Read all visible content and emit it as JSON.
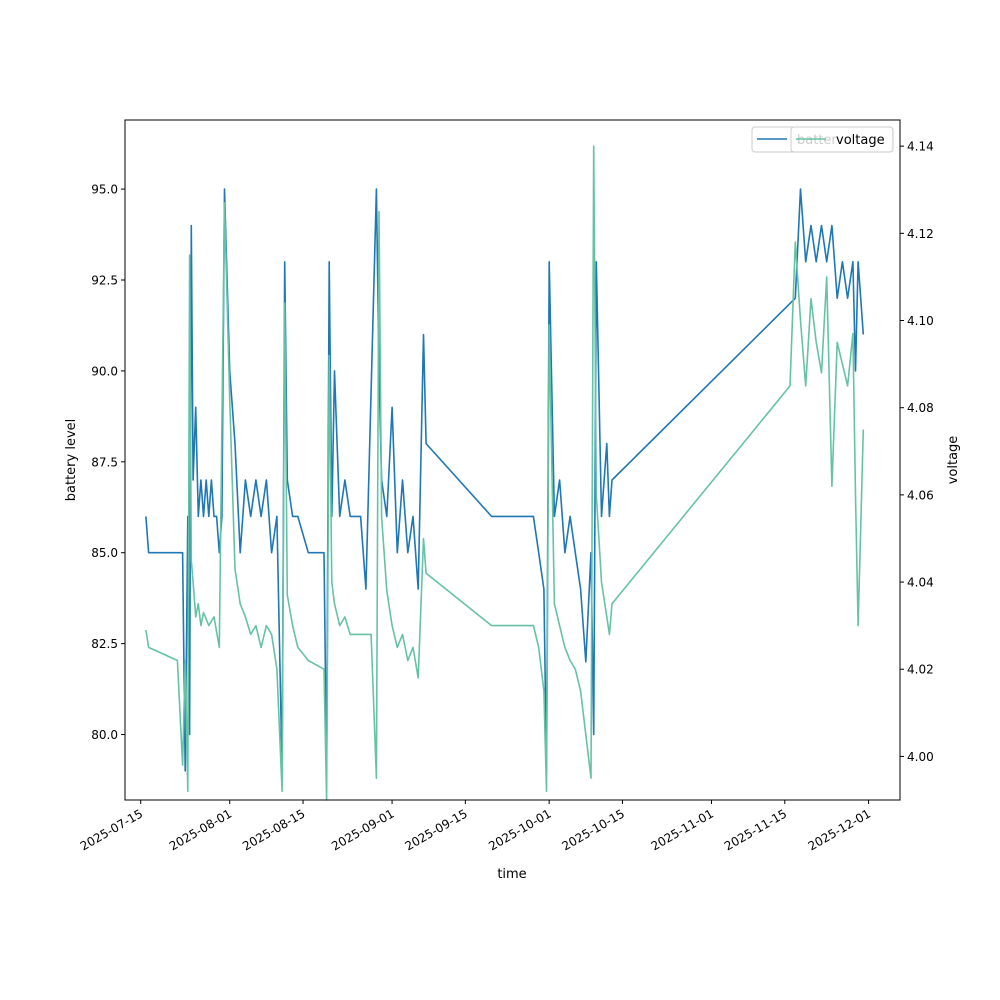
{
  "chart_data": {
    "type": "line",
    "title": "",
    "xlabel": "time",
    "ylabel_left": "battery level",
    "ylabel_right": "voltage",
    "xlim": [
      "2025-07-12",
      "2025-12-07"
    ],
    "ylim_left": [
      78.2,
      96.9
    ],
    "ylim_right": [
      3.99,
      4.146
    ],
    "x_ticks": [
      "2025-07-15",
      "2025-08-01",
      "2025-08-15",
      "2025-09-01",
      "2025-09-15",
      "2025-10-01",
      "2025-10-15",
      "2025-11-01",
      "2025-11-15",
      "2025-12-01"
    ],
    "y_ticks_left": [
      "80.0",
      "82.5",
      "85.0",
      "87.5",
      "90.0",
      "92.5",
      "95.0"
    ],
    "y_ticks_right": [
      "4.00",
      "4.02",
      "4.04",
      "4.06",
      "4.08",
      "4.10",
      "4.12",
      "4.14"
    ],
    "grid": false,
    "legends": [
      {
        "label": "battery level",
        "placement": "upper-right",
        "visible_text": "batter"
      },
      {
        "label": "voltage",
        "placement": "upper-right"
      }
    ],
    "series": [
      {
        "name": "battery level",
        "axis": "left",
        "color": "#1f77b4",
        "x": [
          "2025-07-16",
          "2025-07-16",
          "2025-07-17",
          "2025-07-22",
          "2025-07-23",
          "2025-07-23",
          "2025-07-24",
          "2025-07-24",
          "2025-07-24",
          "2025-07-25",
          "2025-07-25",
          "2025-07-26",
          "2025-07-26",
          "2025-07-27",
          "2025-07-27",
          "2025-07-28",
          "2025-07-28",
          "2025-07-29",
          "2025-07-29",
          "2025-07-30",
          "2025-07-30",
          "2025-07-31",
          "2025-08-01",
          "2025-08-02",
          "2025-08-03",
          "2025-08-04",
          "2025-08-05",
          "2025-08-06",
          "2025-08-07",
          "2025-08-08",
          "2025-08-09",
          "2025-08-10",
          "2025-08-11",
          "2025-08-11",
          "2025-08-12",
          "2025-08-13",
          "2025-08-14",
          "2025-08-16",
          "2025-08-19",
          "2025-08-19",
          "2025-08-20",
          "2025-08-20",
          "2025-08-21",
          "2025-08-22",
          "2025-08-23",
          "2025-08-24",
          "2025-08-25",
          "2025-08-26",
          "2025-08-27",
          "2025-08-29",
          "2025-08-29",
          "2025-08-30",
          "2025-08-31",
          "2025-09-01",
          "2025-09-02",
          "2025-09-03",
          "2025-09-04",
          "2025-09-05",
          "2025-09-06",
          "2025-09-07",
          "2025-09-07",
          "2025-09-20",
          "2025-09-28",
          "2025-09-29",
          "2025-09-30",
          "2025-09-30",
          "2025-10-01",
          "2025-10-02",
          "2025-10-03",
          "2025-10-04",
          "2025-10-05",
          "2025-10-06",
          "2025-10-07",
          "2025-10-08",
          "2025-10-09",
          "2025-10-09",
          "2025-10-10",
          "2025-10-11",
          "2025-10-12",
          "2025-10-12",
          "2025-10-13",
          "2025-11-17",
          "2025-11-18",
          "2025-11-19",
          "2025-11-20",
          "2025-11-21",
          "2025-11-22",
          "2025-11-23",
          "2025-11-24",
          "2025-11-25",
          "2025-11-26",
          "2025-11-27",
          "2025-11-28",
          "2025-11-28",
          "2025-11-29",
          "2025-11-30"
        ],
        "values": [
          86,
          85,
          85,
          85,
          85,
          79,
          86,
          80,
          94,
          87,
          89,
          86,
          87,
          86,
          87,
          86,
          87,
          86,
          86,
          85,
          86,
          95,
          90,
          88,
          85,
          87,
          86,
          87,
          86,
          87,
          85,
          86,
          79,
          93,
          87,
          86,
          86,
          85,
          85,
          79,
          93,
          86,
          90,
          86,
          87,
          86,
          86,
          86,
          84,
          95,
          90,
          87,
          86,
          89,
          85,
          87,
          85,
          86,
          84,
          91,
          88,
          86,
          86,
          85,
          84,
          79,
          93,
          86,
          87,
          85,
          86,
          85,
          84,
          82,
          85,
          80,
          93,
          86,
          88,
          86,
          87,
          92,
          95,
          93,
          94,
          93,
          94,
          93,
          94,
          92,
          93,
          92,
          93,
          90,
          93,
          91
        ]
      },
      {
        "name": "voltage",
        "axis": "right",
        "color": "#66c2a5",
        "x": [
          "2025-07-16",
          "2025-07-16",
          "2025-07-22",
          "2025-07-23",
          "2025-07-23",
          "2025-07-24",
          "2025-07-24",
          "2025-07-24",
          "2025-07-25",
          "2025-07-25",
          "2025-07-26",
          "2025-07-26",
          "2025-07-27",
          "2025-07-28",
          "2025-07-29",
          "2025-07-30",
          "2025-07-31",
          "2025-08-01",
          "2025-08-02",
          "2025-08-03",
          "2025-08-04",
          "2025-08-05",
          "2025-08-06",
          "2025-08-07",
          "2025-08-08",
          "2025-08-09",
          "2025-08-10",
          "2025-08-11",
          "2025-08-11",
          "2025-08-12",
          "2025-08-13",
          "2025-08-14",
          "2025-08-16",
          "2025-08-19",
          "2025-08-19",
          "2025-08-20",
          "2025-08-20",
          "2025-08-21",
          "2025-08-22",
          "2025-08-23",
          "2025-08-24",
          "2025-08-26",
          "2025-08-28",
          "2025-08-29",
          "2025-08-29",
          "2025-08-30",
          "2025-08-31",
          "2025-09-01",
          "2025-09-02",
          "2025-09-03",
          "2025-09-04",
          "2025-09-05",
          "2025-09-06",
          "2025-09-07",
          "2025-09-07",
          "2025-09-20",
          "2025-09-28",
          "2025-09-29",
          "2025-09-30",
          "2025-09-30",
          "2025-10-01",
          "2025-10-02",
          "2025-10-03",
          "2025-10-04",
          "2025-10-05",
          "2025-10-06",
          "2025-10-07",
          "2025-10-08",
          "2025-10-09",
          "2025-10-09",
          "2025-10-10",
          "2025-10-11",
          "2025-10-12",
          "2025-10-12",
          "2025-10-13",
          "2025-11-16",
          "2025-11-17",
          "2025-11-18",
          "2025-11-19",
          "2025-11-20",
          "2025-11-21",
          "2025-11-22",
          "2025-11-23",
          "2025-11-24",
          "2025-11-25",
          "2025-11-26",
          "2025-11-27",
          "2025-11-28",
          "2025-11-28",
          "2025-11-29",
          "2025-11-30"
        ],
        "values": [
          4.029,
          4.025,
          4.022,
          3.998,
          4.022,
          3.992,
          4.115,
          4.045,
          4.04,
          4.032,
          4.035,
          4.03,
          4.033,
          4.03,
          4.032,
          4.025,
          4.127,
          4.082,
          4.043,
          4.035,
          4.032,
          4.028,
          4.03,
          4.025,
          4.03,
          4.028,
          4.02,
          3.992,
          4.104,
          4.037,
          4.03,
          4.025,
          4.022,
          4.02,
          3.99,
          4.092,
          4.04,
          4.035,
          4.03,
          4.032,
          4.028,
          4.028,
          4.028,
          3.995,
          4.125,
          4.055,
          4.038,
          4.03,
          4.025,
          4.028,
          4.022,
          4.025,
          4.018,
          4.05,
          4.042,
          4.03,
          4.03,
          4.025,
          4.015,
          3.992,
          4.099,
          4.035,
          4.03,
          4.025,
          4.022,
          4.02,
          4.015,
          4.005,
          3.995,
          4.14,
          4.06,
          4.04,
          4.032,
          4.028,
          4.035,
          4.085,
          4.118,
          4.1,
          4.085,
          4.105,
          4.095,
          4.088,
          4.11,
          4.062,
          4.095,
          4.09,
          4.085,
          4.097,
          4.06,
          4.03,
          4.075
        ]
      }
    ]
  }
}
